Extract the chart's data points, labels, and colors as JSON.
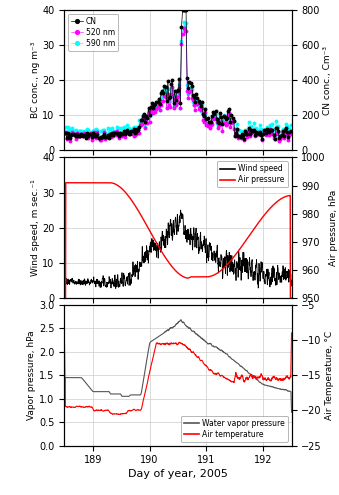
{
  "xlim": [
    188.5,
    192.5
  ],
  "xticks": [
    189,
    190,
    191,
    192
  ],
  "xlabel": "Day of year, 2005",
  "panel1": {
    "ylabel_left": "BC conc., ng m⁻³",
    "ylabel_right": "CN conc., Cm⁻³",
    "ylim_left": [
      0,
      40
    ],
    "ylim_right": [
      0,
      800
    ],
    "yticks_left": [
      0,
      10,
      20,
      30,
      40
    ],
    "yticks_right": [
      0,
      200,
      400,
      600,
      800
    ],
    "legend": [
      "CN",
      "520 nm",
      "590 nm"
    ],
    "colors": [
      "black",
      "magenta",
      "cyan"
    ]
  },
  "panel2": {
    "ylabel_left": "Wind speed, m sec.⁻¹",
    "ylabel_right": "Air pressure, hPa",
    "ylim_left": [
      0,
      40
    ],
    "ylim_right": [
      950,
      1000
    ],
    "yticks_left": [
      0,
      10,
      20,
      30,
      40
    ],
    "yticks_right": [
      950,
      960,
      970,
      980,
      990,
      1000
    ],
    "legend": [
      "Wind speed",
      "Air pressure"
    ],
    "colors": [
      "black",
      "red"
    ]
  },
  "panel3": {
    "ylabel_left": "Vapor pressure, hPa",
    "ylabel_right": "Air Temperature, °C",
    "ylim_left": [
      0.0,
      3.0
    ],
    "ylim_right": [
      -25,
      -5
    ],
    "yticks_left": [
      0.0,
      0.5,
      1.0,
      1.5,
      2.0,
      2.5,
      3.0
    ],
    "yticks_right": [
      -25,
      -20,
      -15,
      -10,
      -5
    ],
    "legend": [
      "Water vapor pressure",
      "Air temperature"
    ],
    "colors": [
      "#555555",
      "red"
    ]
  },
  "figure_bg": "white",
  "grid_color": "#cccccc",
  "grid_lw": 0.5
}
